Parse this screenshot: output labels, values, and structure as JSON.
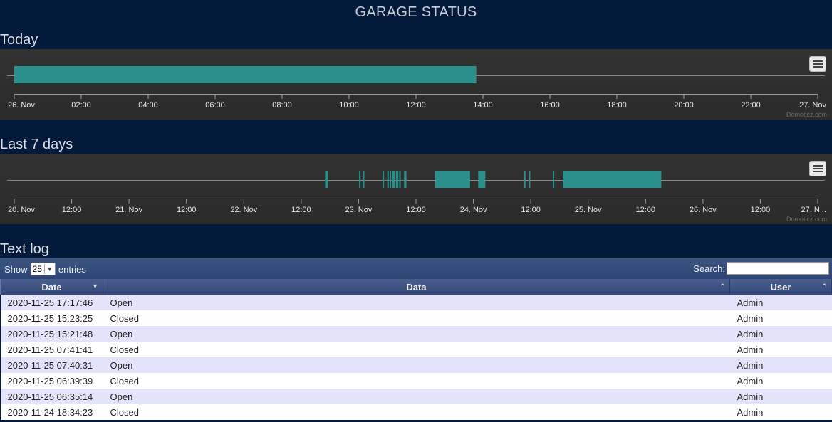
{
  "page": {
    "title": "GARAGE STATUS"
  },
  "sections": {
    "today": "Today",
    "week": "Last 7 days",
    "log": "Text log"
  },
  "chart_data": [
    {
      "type": "timeline",
      "name": "today",
      "x_ticks": [
        "26. Nov",
        "02:00",
        "04:00",
        "06:00",
        "08:00",
        "10:00",
        "12:00",
        "14:00",
        "16:00",
        "18:00",
        "20:00",
        "22:00",
        "27. Nov"
      ],
      "x_range_hours": [
        0,
        24
      ],
      "open_intervals_hours": [
        [
          0,
          13.8
        ]
      ],
      "credit": "Domoticz.com"
    },
    {
      "type": "timeline",
      "name": "last-7-days",
      "x_ticks": [
        "20. Nov",
        "12:00",
        "21. Nov",
        "12:00",
        "22. Nov",
        "12:00",
        "23. Nov",
        "12:00",
        "24. Nov",
        "12:00",
        "25. Nov",
        "12:00",
        "26. Nov",
        "12:00",
        "27. N..."
      ],
      "x_range_hours": [
        0,
        168
      ],
      "open_intervals_hours": [
        [
          65.0,
          65.6
        ],
        [
          72.1,
          72.4
        ],
        [
          72.9,
          73.2
        ],
        [
          77.0,
          77.3
        ],
        [
          78.0,
          78.3
        ],
        [
          78.5,
          78.8
        ],
        [
          79.0,
          79.6
        ],
        [
          79.8,
          80.3
        ],
        [
          80.5,
          80.8
        ],
        [
          81.5,
          82.0
        ],
        [
          88.0,
          95.3
        ],
        [
          97.0,
          98.5
        ],
        [
          106.6,
          106.9
        ],
        [
          107.6,
          107.9
        ],
        [
          112.6,
          112.9
        ],
        [
          114.7,
          135.3
        ]
      ],
      "credit": "Domoticz.com"
    }
  ],
  "toolbar": {
    "show_label": "Show",
    "page_length": "25",
    "entries_label": "entries",
    "search_label": "Search:",
    "search_value": ""
  },
  "table": {
    "columns": [
      "Date",
      "Data",
      "User"
    ],
    "rows": [
      [
        "2020-11-25 17:17:46",
        "Open",
        "Admin"
      ],
      [
        "2020-11-25 15:23:25",
        "Closed",
        "Admin"
      ],
      [
        "2020-11-25 15:21:48",
        "Open",
        "Admin"
      ],
      [
        "2020-11-25 07:41:41",
        "Closed",
        "Admin"
      ],
      [
        "2020-11-25 07:40:31",
        "Open",
        "Admin"
      ],
      [
        "2020-11-25 06:39:39",
        "Closed",
        "Admin"
      ],
      [
        "2020-11-25 06:35:14",
        "Open",
        "Admin"
      ],
      [
        "2020-11-24 18:34:23",
        "Closed",
        "Admin"
      ]
    ]
  },
  "colors": {
    "bar": "#2b8f8b",
    "background": "#031a3a"
  }
}
